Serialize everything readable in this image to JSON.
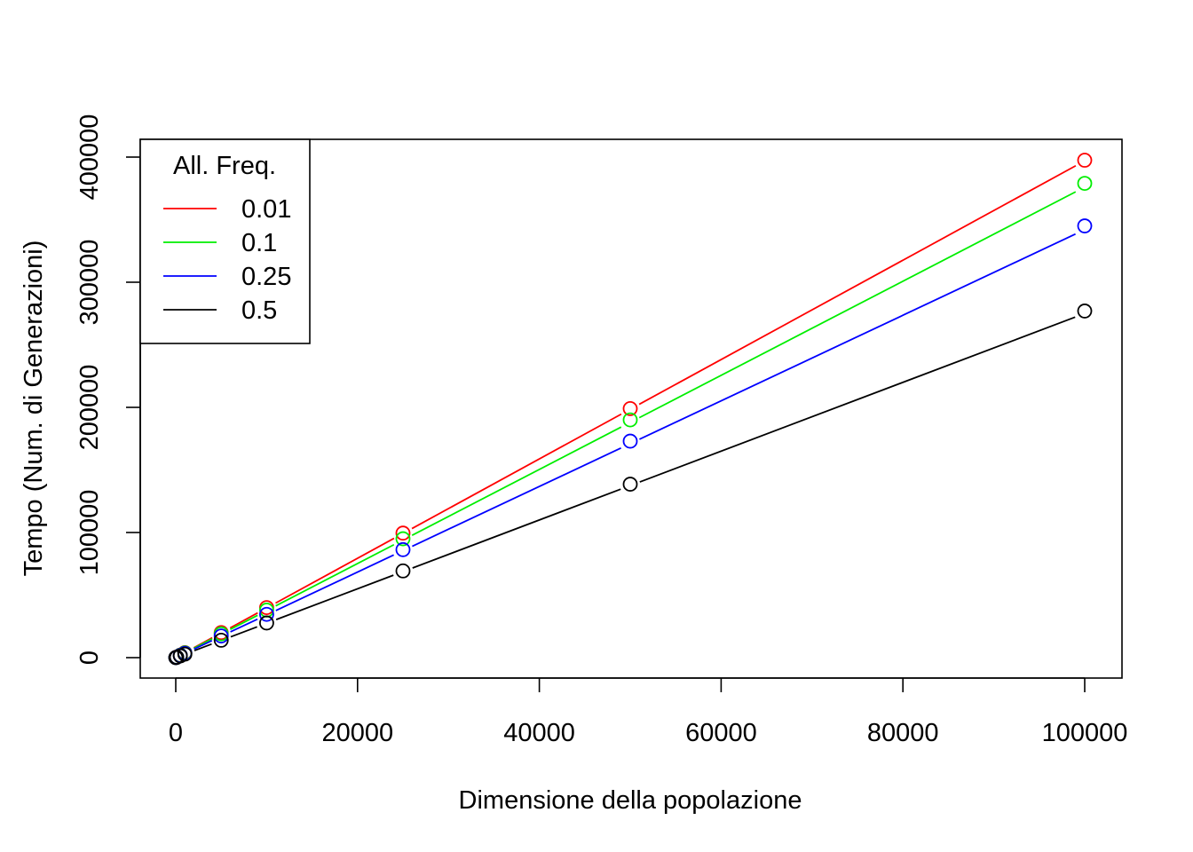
{
  "chart_data": {
    "type": "line",
    "title": "",
    "xlabel": "Dimensione della popolazione",
    "ylabel": "Tempo (Num. di Generazioni)",
    "xlim": [
      0,
      100000
    ],
    "ylim": [
      0,
      400000
    ],
    "x_ticks": [
      0,
      20000,
      40000,
      60000,
      80000,
      100000
    ],
    "y_ticks": [
      0,
      100000,
      200000,
      300000,
      400000
    ],
    "grid": false,
    "legend": {
      "title": "All. Freq.",
      "position": "top-left"
    },
    "x": [
      10,
      100,
      500,
      1000,
      5000,
      10000,
      25000,
      50000,
      100000
    ],
    "series": [
      {
        "name": "0.01",
        "color": "#ff0000",
        "values": [
          40,
          400,
          2000,
          4000,
          20000,
          40000,
          99500,
          199000,
          397500
        ],
        "fit": [
          0,
          3.97
        ]
      },
      {
        "name": "0.1",
        "color": "#00ee00",
        "values": [
          38,
          380,
          1900,
          3800,
          19000,
          38000,
          95000,
          190000,
          379000
        ],
        "fit": [
          0,
          3.76
        ]
      },
      {
        "name": "0.25",
        "color": "#0000ff",
        "values": [
          35,
          345,
          1730,
          3460,
          17300,
          34600,
          86300,
          173000,
          345000
        ],
        "fit": [
          0,
          3.42
        ]
      },
      {
        "name": "0.5",
        "color": "#000000",
        "values": [
          28,
          277,
          1390,
          2770,
          13900,
          27700,
          69300,
          138600,
          277000
        ],
        "fit": [
          0,
          2.75
        ]
      }
    ]
  }
}
